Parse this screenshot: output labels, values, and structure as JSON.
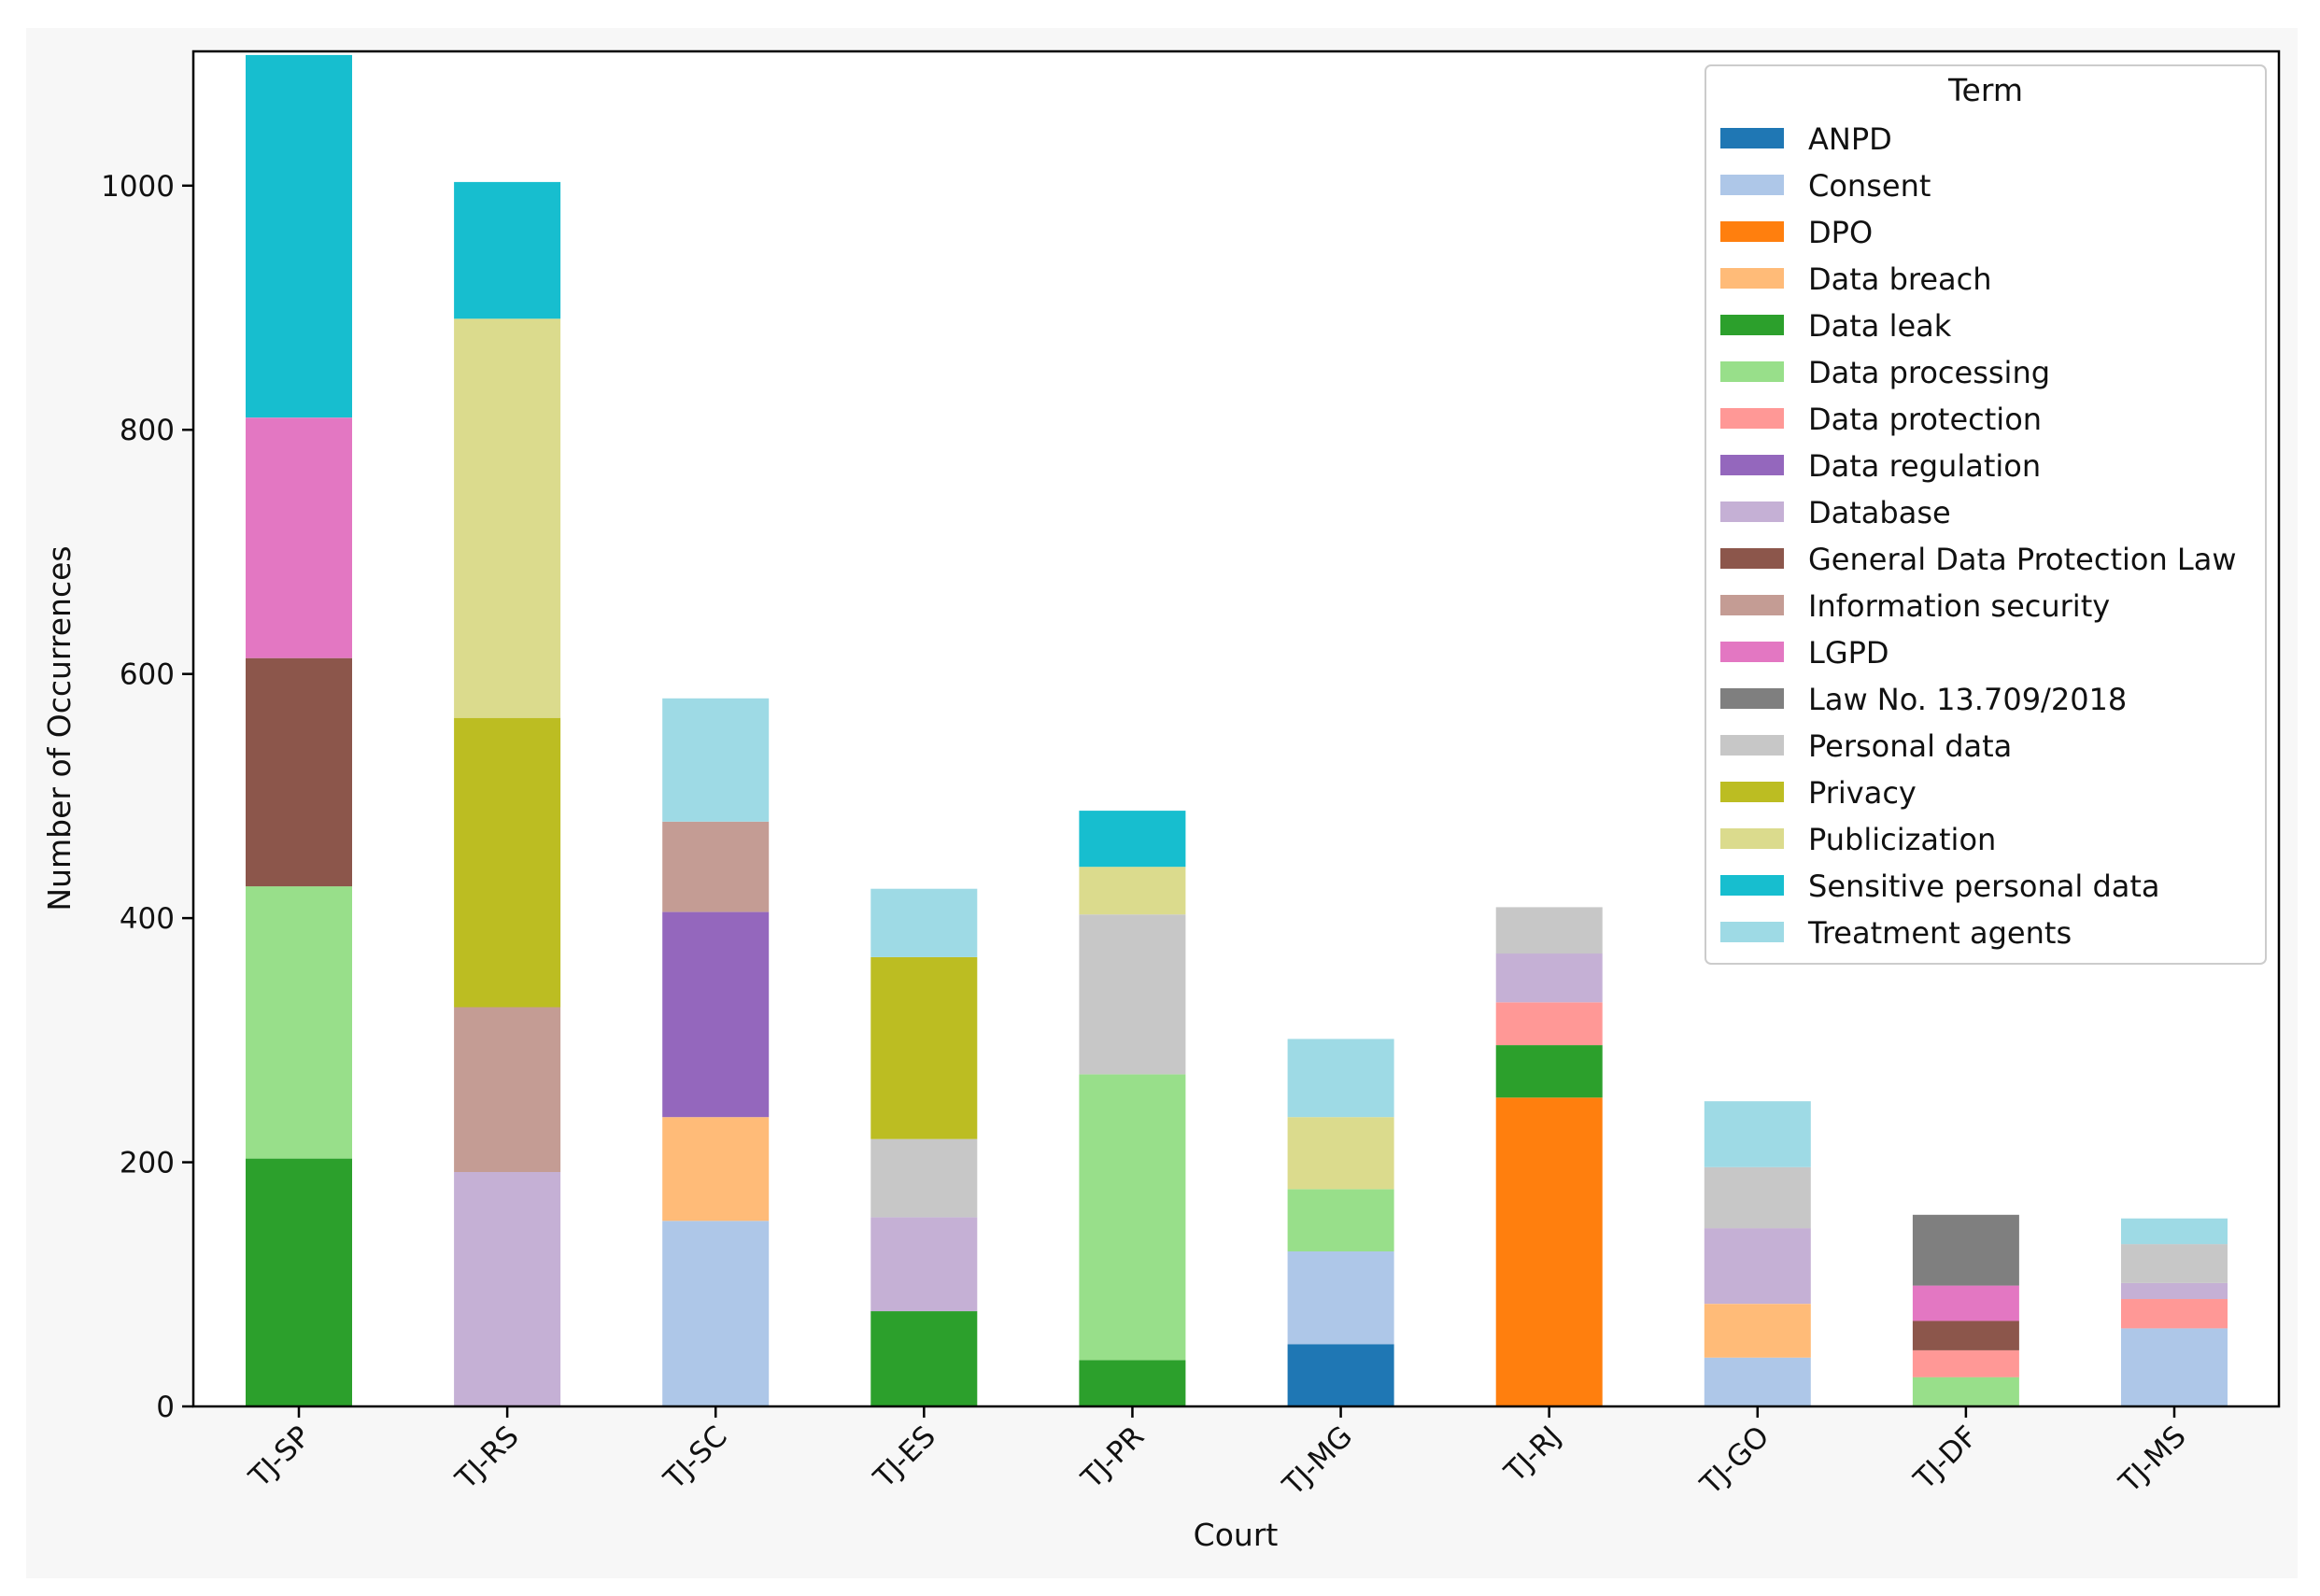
{
  "chart_data": {
    "type": "bar",
    "stacked": true,
    "xlabel": "Court",
    "ylabel": "Number of Occurrences",
    "ylim": [
      0,
      1110
    ],
    "yticks": [
      0,
      200,
      400,
      600,
      800,
      1000
    ],
    "categories": [
      "TJ-SP",
      "TJ-RS",
      "TJ-SC",
      "TJ-ES",
      "TJ-PR",
      "TJ-MG",
      "TJ-RJ",
      "TJ-GO",
      "TJ-DF",
      "TJ-MS"
    ],
    "legend": {
      "title": "Term",
      "position": "top-right"
    },
    "series": [
      {
        "name": "ANPD",
        "color": "#1f77b4",
        "values": [
          0,
          0,
          0,
          0,
          0,
          51,
          0,
          0,
          0,
          0
        ]
      },
      {
        "name": "Consent",
        "color": "#aec7e8",
        "values": [
          0,
          0,
          152,
          0,
          0,
          76,
          0,
          40,
          0,
          64
        ]
      },
      {
        "name": "DPO",
        "color": "#ff7f0e",
        "values": [
          0,
          0,
          0,
          0,
          0,
          0,
          253,
          0,
          0,
          0
        ]
      },
      {
        "name": "Data breach",
        "color": "#ffbb78",
        "values": [
          0,
          0,
          85,
          0,
          0,
          0,
          0,
          44,
          0,
          0
        ]
      },
      {
        "name": "Data leak",
        "color": "#2ca02c",
        "values": [
          203,
          0,
          0,
          78,
          38,
          0,
          43,
          0,
          0,
          0
        ]
      },
      {
        "name": "Data processing",
        "color": "#98df8a",
        "values": [
          223,
          0,
          0,
          0,
          234,
          51,
          0,
          0,
          24,
          0
        ]
      },
      {
        "name": "Data protection",
        "color": "#ff9896",
        "values": [
          0,
          0,
          0,
          0,
          0,
          0,
          35,
          0,
          22,
          24
        ]
      },
      {
        "name": "Data regulation",
        "color": "#9467bd",
        "values": [
          0,
          0,
          168,
          0,
          0,
          0,
          0,
          0,
          0,
          0
        ]
      },
      {
        "name": "Database",
        "color": "#c5b0d5",
        "values": [
          0,
          192,
          0,
          77,
          0,
          0,
          40,
          62,
          0,
          13
        ]
      },
      {
        "name": "General Data Protection Law",
        "color": "#8c564b",
        "values": [
          187,
          0,
          0,
          0,
          0,
          0,
          0,
          0,
          24,
          0
        ]
      },
      {
        "name": "Information security",
        "color": "#c49c94",
        "values": [
          0,
          135,
          74,
          0,
          0,
          0,
          0,
          0,
          0,
          0
        ]
      },
      {
        "name": "LGPD",
        "color": "#e377c2",
        "values": [
          197,
          0,
          0,
          0,
          0,
          0,
          0,
          0,
          29,
          0
        ]
      },
      {
        "name": "Law No. 13.709/2018",
        "color": "#7f7f7f",
        "values": [
          0,
          0,
          0,
          0,
          0,
          0,
          0,
          0,
          58,
          0
        ]
      },
      {
        "name": "Personal data",
        "color": "#c7c7c7",
        "values": [
          0,
          0,
          0,
          64,
          131,
          0,
          38,
          50,
          0,
          32
        ]
      },
      {
        "name": "Privacy",
        "color": "#bcbd22",
        "values": [
          0,
          237,
          0,
          149,
          0,
          0,
          0,
          0,
          0,
          0
        ]
      },
      {
        "name": "Publicization",
        "color": "#dbdb8d",
        "values": [
          0,
          327,
          0,
          0,
          39,
          59,
          0,
          0,
          0,
          0
        ]
      },
      {
        "name": "Sensitive personal data",
        "color": "#17becf",
        "values": [
          297,
          112,
          0,
          0,
          46,
          0,
          0,
          0,
          0,
          0
        ]
      },
      {
        "name": "Treatment agents",
        "color": "#9edae5",
        "values": [
          0,
          0,
          101,
          56,
          0,
          64,
          0,
          54,
          0,
          21
        ]
      }
    ]
  }
}
